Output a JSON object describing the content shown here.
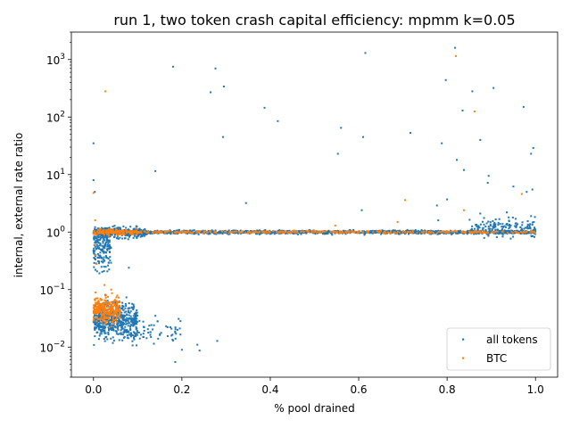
{
  "chart_data": {
    "type": "scatter",
    "title": "run 1, two token crash capital efficiency: mpmm k=0.05",
    "xlabel": "% pool drained",
    "ylabel": "internal, external rate ratio",
    "xlim": [
      -0.05,
      1.05
    ],
    "ylim": [
      0.003,
      3000
    ],
    "yscale": "log",
    "grid": false,
    "legend_position": "lower-right",
    "x_ticks": [
      {
        "value": 0.0,
        "label": "0.0"
      },
      {
        "value": 0.2,
        "label": "0.2"
      },
      {
        "value": 0.4,
        "label": "0.4"
      },
      {
        "value": 0.6,
        "label": "0.6"
      },
      {
        "value": 0.8,
        "label": "0.8"
      },
      {
        "value": 1.0,
        "label": "1.0"
      }
    ],
    "y_ticks": [
      {
        "value": 0.01,
        "base": "10",
        "exp": "−2"
      },
      {
        "value": 0.1,
        "base": "10",
        "exp": "−1"
      },
      {
        "value": 1,
        "base": "10",
        "exp": "0"
      },
      {
        "value": 10,
        "base": "10",
        "exp": "1"
      },
      {
        "value": 100,
        "base": "10",
        "exp": "2"
      },
      {
        "value": 1000,
        "base": "10",
        "exp": "3"
      }
    ],
    "series": [
      {
        "name": "all tokens",
        "color": "#1f77b4",
        "points": [
          [
            0.18,
            750
          ],
          [
            0.276,
            700
          ],
          [
            0.295,
            340
          ],
          [
            0.265,
            270
          ],
          [
            0.615,
            1300
          ],
          [
            0.818,
            1600
          ],
          [
            0.797,
            440
          ],
          [
            0.857,
            280
          ],
          [
            0.905,
            320
          ],
          [
            0.973,
            150
          ],
          [
            0.835,
            130
          ],
          [
            0.387,
            145
          ],
          [
            0.417,
            85
          ],
          [
            0.293,
            45
          ],
          [
            0.56,
            65
          ],
          [
            0.61,
            45
          ],
          [
            0.717,
            53
          ],
          [
            0.553,
            23
          ],
          [
            0.788,
            35
          ],
          [
            0.875,
            40
          ],
          [
            0.995,
            29
          ],
          [
            0.99,
            23
          ],
          [
            0.822,
            18
          ],
          [
            0.838,
            12
          ],
          [
            0.14,
            11.5
          ],
          [
            0.894,
            9.5
          ],
          [
            0.892,
            7.2
          ],
          [
            0.0,
            35
          ],
          [
            0.0,
            8
          ],
          [
            0.003,
            5
          ],
          [
            0.345,
            3.2
          ],
          [
            0.607,
            2.4
          ],
          [
            0.95,
            6.2
          ],
          [
            0.98,
            5
          ],
          [
            0.993,
            5.5
          ],
          [
            0.777,
            2.9
          ],
          [
            0.8,
            3.7
          ],
          [
            0.935,
            2.2
          ],
          [
            0.875,
            2.1
          ],
          [
            0.955,
            1.7
          ],
          [
            0.78,
            1.6
          ],
          [
            0.08,
            0.24
          ],
          [
            0.14,
            0.035
          ],
          [
            0.145,
            0.028
          ],
          [
            0.19,
            0.02
          ],
          [
            0.18,
            0.013
          ],
          [
            0.2,
            0.009
          ],
          [
            0.185,
            0.0055
          ],
          [
            0.235,
            0.011
          ],
          [
            0.24,
            0.0087
          ],
          [
            0.28,
            0.0128
          ],
          [
            0.13,
            0.015
          ],
          [
            0.003,
            0.02
          ],
          [
            0.004,
            0.4
          ],
          [
            0.005,
            0.7
          ]
        ],
        "clusters": [
          {
            "x_range": [
              0.0,
              1.0
            ],
            "y_center": 1.0,
            "y_spread_decades": 0.03,
            "count": 1400
          },
          {
            "x_range": [
              0.0,
              0.12
            ],
            "y_center": 1.0,
            "y_spread_decades": 0.1,
            "count": 250
          },
          {
            "x_range": [
              0.85,
              1.0
            ],
            "y_center": 1.2,
            "y_spread_decades": 0.15,
            "count": 150
          },
          {
            "x_range": [
              0.0,
              0.04
            ],
            "y_center": 0.5,
            "y_spread_decades": 0.35,
            "count": 160
          },
          {
            "x_range": [
              0.0,
              0.1
            ],
            "y_center": 0.03,
            "y_spread_decades": 0.3,
            "count": 500
          },
          {
            "x_range": [
              0.05,
              0.2
            ],
            "y_center": 0.02,
            "y_spread_decades": 0.2,
            "count": 70
          }
        ]
      },
      {
        "name": "BTC",
        "color": "#ff7f0e",
        "points": [
          [
            0.027,
            280
          ],
          [
            0.82,
            1150
          ],
          [
            0.862,
            125
          ],
          [
            0.0,
            4.8
          ],
          [
            0.705,
            3.6
          ],
          [
            0.838,
            2.4
          ],
          [
            0.969,
            4.6
          ],
          [
            0.547,
            1.3
          ],
          [
            0.688,
            1.5
          ],
          [
            0.004,
            1.6
          ],
          [
            0.003,
            0.6
          ],
          [
            0.005,
            0.4
          ],
          [
            0.007,
            0.28
          ],
          [
            0.025,
            0.12
          ],
          [
            0.04,
            0.1
          ]
        ],
        "clusters": [
          {
            "x_range": [
              0.0,
              1.0
            ],
            "y_center": 1.0,
            "y_spread_decades": 0.02,
            "count": 420
          },
          {
            "x_range": [
              0.0,
              0.1
            ],
            "y_center": 1.0,
            "y_spread_decades": 0.05,
            "count": 140
          },
          {
            "x_range": [
              0.0,
              0.06
            ],
            "y_center": 0.045,
            "y_spread_decades": 0.22,
            "count": 260
          }
        ]
      }
    ]
  }
}
